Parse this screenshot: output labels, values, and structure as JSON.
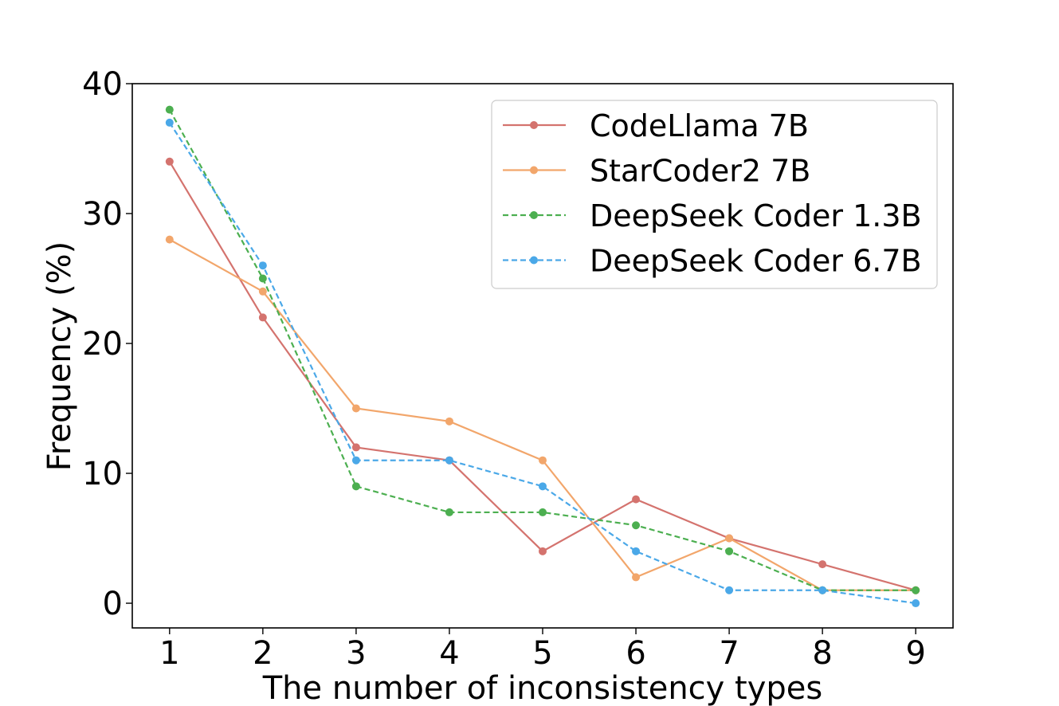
{
  "chart_data": {
    "type": "line",
    "title": "",
    "xlabel": "The number of inconsistency types",
    "ylabel": "Frequency (%)",
    "x": [
      1,
      2,
      3,
      4,
      5,
      6,
      7,
      8,
      9
    ],
    "xlim": [
      0.6,
      9.4
    ],
    "ylim": [
      -1.9,
      40
    ],
    "yticks": [
      0,
      10,
      20,
      30,
      40
    ],
    "grid": false,
    "legend_position": "top-right",
    "series": [
      {
        "name": "CodeLlama 7B",
        "color": "#d4736e",
        "dashed": false,
        "values": [
          34,
          22,
          12,
          11,
          4,
          8,
          5,
          3,
          1
        ]
      },
      {
        "name": "StarCoder2 7B",
        "color": "#f2a66b",
        "dashed": false,
        "values": [
          28,
          24,
          15,
          14,
          11,
          2,
          5,
          1,
          1
        ]
      },
      {
        "name": "DeepSeek Coder 1.3B",
        "color": "#4caf50",
        "dashed": true,
        "values": [
          38,
          25,
          9,
          7,
          7,
          6,
          4,
          1,
          1
        ]
      },
      {
        "name": "DeepSeek Coder 6.7B",
        "color": "#4aa8e8",
        "dashed": true,
        "values": [
          37,
          26,
          11,
          11,
          9,
          4,
          1,
          1,
          0
        ]
      }
    ]
  }
}
